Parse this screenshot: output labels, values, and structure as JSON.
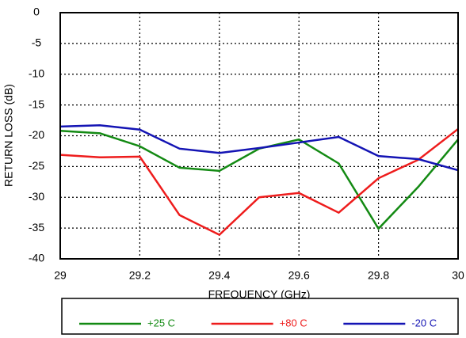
{
  "chart_data": {
    "type": "line",
    "xlabel": "FREQUENCY (GHz)",
    "ylabel": "RETURN LOSS (dB)",
    "x": [
      29,
      29.1,
      29.2,
      29.3,
      29.4,
      29.5,
      29.6,
      29.7,
      29.8,
      29.9,
      30
    ],
    "series": [
      {
        "name": "+25 C",
        "color": "#138a13",
        "values": [
          -19.2,
          -19.6,
          -21.7,
          -25.2,
          -25.7,
          -22.1,
          -20.6,
          -24.5,
          -35.1,
          -28.3,
          -20.6
        ]
      },
      {
        "name": "+80 C",
        "color": "#ee1c1c",
        "values": [
          -23.1,
          -23.5,
          -23.4,
          -32.9,
          -36.1,
          -30.0,
          -29.3,
          -32.5,
          -26.9,
          -23.9,
          -18.9
        ]
      },
      {
        "name": "-20 C",
        "color": "#1414b4",
        "values": [
          -18.5,
          -18.3,
          -19.0,
          -22.1,
          -22.8,
          -22.0,
          -21.1,
          -20.2,
          -23.3,
          -23.8,
          -25.6
        ]
      }
    ],
    "xlim": [
      29,
      30
    ],
    "xticks": [
      29,
      29.2,
      29.4,
      29.6,
      29.8,
      30
    ],
    "ylim": [
      -40,
      0
    ],
    "yticks": [
      0,
      -5,
      -10,
      -15,
      -20,
      -25,
      -30,
      -35,
      -40
    ],
    "grid": true,
    "legend": "bottom"
  }
}
